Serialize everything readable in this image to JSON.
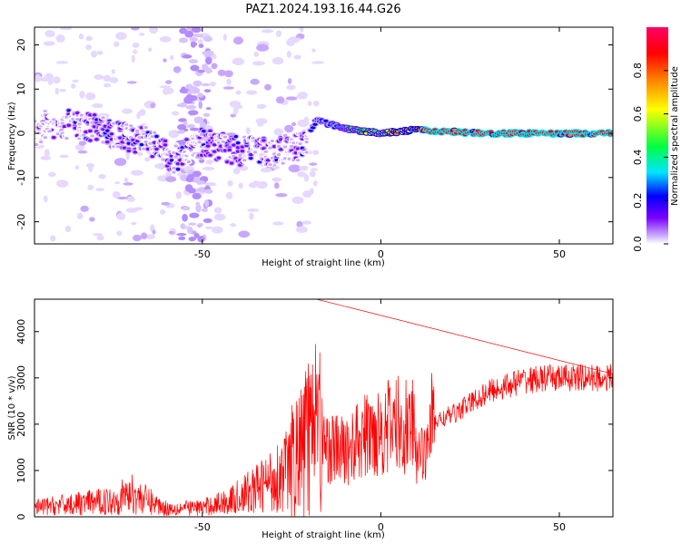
{
  "title": "PAZ1.2024.193.16.44.G26",
  "chart_data": [
    {
      "type": "heatmap",
      "xlabel": "Height of straight line (km)",
      "ylabel": "Frequency (Hz)",
      "xlim": [
        -97,
        65
      ],
      "ylim": [
        -25,
        24
      ],
      "xticks": [
        -50,
        0,
        50
      ],
      "yticks": [
        -20,
        -10,
        0,
        10,
        20
      ],
      "colorbar": {
        "label": "Normalized spectral amplitude",
        "range": [
          0,
          1
        ],
        "ticks": [
          0.0,
          0.2,
          0.4,
          0.6,
          0.8
        ],
        "colors": [
          "#ffffff",
          "#c8a8ff",
          "#7a00ff",
          "#0000ff",
          "#00e5ff",
          "#00ff40",
          "#ffff00",
          "#ff7f00",
          "#ff0000",
          "#ff0066"
        ]
      },
      "ridge": [
        {
          "x": -95,
          "f": 2
        },
        {
          "x": -85,
          "f": 2
        },
        {
          "x": -75,
          "f": 0
        },
        {
          "x": -65,
          "f": -2
        },
        {
          "x": -58,
          "f": -6
        },
        {
          "x": -50,
          "f": -2
        },
        {
          "x": -40,
          "f": -4
        },
        {
          "x": -30,
          "f": -4
        },
        {
          "x": -22,
          "f": -3
        },
        {
          "x": -18,
          "f": 3
        },
        {
          "x": -10,
          "f": 1
        },
        {
          "x": 0,
          "f": 0
        },
        {
          "x": 10,
          "f": 0.8
        },
        {
          "x": 20,
          "f": 0.3
        },
        {
          "x": 30,
          "f": 0
        },
        {
          "x": 50,
          "f": 0
        },
        {
          "x": 65,
          "f": 0
        }
      ]
    },
    {
      "type": "line",
      "xlabel": "Height of straight line (km)",
      "ylabel": "SNR (10 * v/v)",
      "xlim": [
        -97,
        65
      ],
      "ylim": [
        0,
        4700
      ],
      "xticks": [
        -50,
        0,
        50
      ],
      "yticks": [
        0,
        1000,
        2000,
        3000,
        4000
      ],
      "color": "#ff0000",
      "trend": [
        {
          "x": -97,
          "y": 200
        },
        {
          "x": -75,
          "y": 350
        },
        {
          "x": -70,
          "y": 500
        },
        {
          "x": -60,
          "y": 180
        },
        {
          "x": -50,
          "y": 200
        },
        {
          "x": -42,
          "y": 350
        },
        {
          "x": -35,
          "y": 600
        },
        {
          "x": -28,
          "y": 900
        },
        {
          "x": -22,
          "y": 1400
        },
        {
          "x": -19,
          "y": 1800
        },
        {
          "x": -15,
          "y": 1500
        },
        {
          "x": -10,
          "y": 1400
        },
        {
          "x": -5,
          "y": 1700
        },
        {
          "x": 0,
          "y": 1900
        },
        {
          "x": 5,
          "y": 2000
        },
        {
          "x": 10,
          "y": 1900
        },
        {
          "x": 20,
          "y": 2200
        },
        {
          "x": 30,
          "y": 2700
        },
        {
          "x": 40,
          "y": 2950
        },
        {
          "x": 50,
          "y": 3000
        },
        {
          "x": 65,
          "y": 3000
        }
      ],
      "peak": {
        "x": -18,
        "y": 4700
      }
    }
  ]
}
